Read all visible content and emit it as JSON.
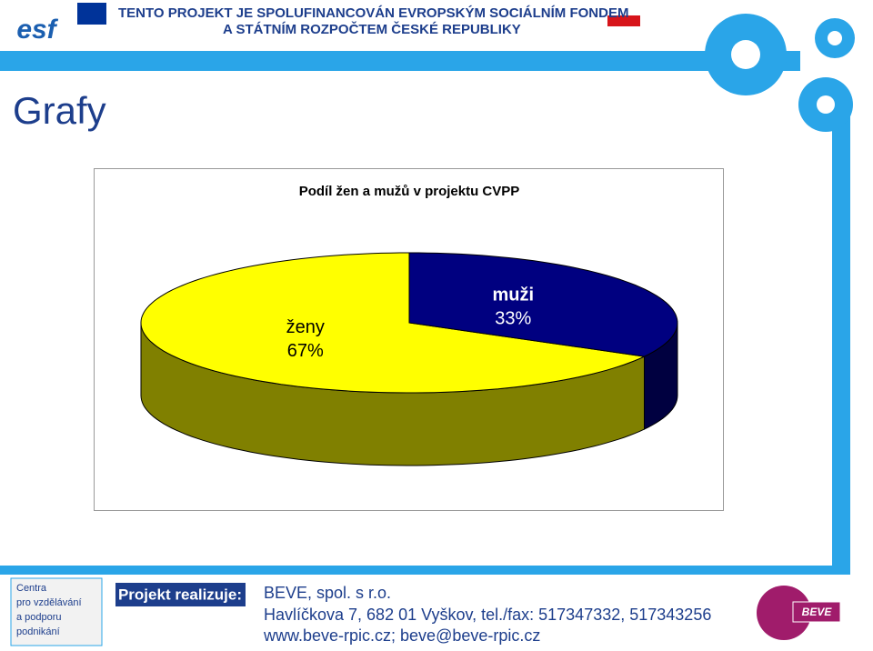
{
  "header": {
    "logo": "esf",
    "line1": "TENTO PROJEKT JE SPOLUFINANCOVÁN EVROPSKÝM SOCIÁLNÍM FONDEM",
    "line2": "A STÁTNÍM ROZPOČTEM ČESKÉ REPUBLIKY"
  },
  "slide_title": "Grafy",
  "chart_data": {
    "type": "pie",
    "title": "Podíl žen a mužů v projektu CVPP",
    "categories": [
      "ženy",
      "muži"
    ],
    "values": [
      67,
      33
    ],
    "value_labels": [
      "67%",
      "33%"
    ],
    "colors": [
      "#ffff00",
      "#000080"
    ],
    "side_colors": [
      "#808000",
      "#000040"
    ]
  },
  "footer": {
    "logo_lines": [
      "Centra",
      "pro vzdělávání",
      "a podporu",
      "podnikání"
    ],
    "realizer": "Projekt realizuje:",
    "company": "BEVE, spol. s r.o.",
    "address": "Havlíčkova 7, 682 01 Vyškov, tel./fax: 517347332, 517343256",
    "web": "www.beve-rpic.cz; beve@beve-rpic.cz",
    "badge": "BEVE"
  }
}
